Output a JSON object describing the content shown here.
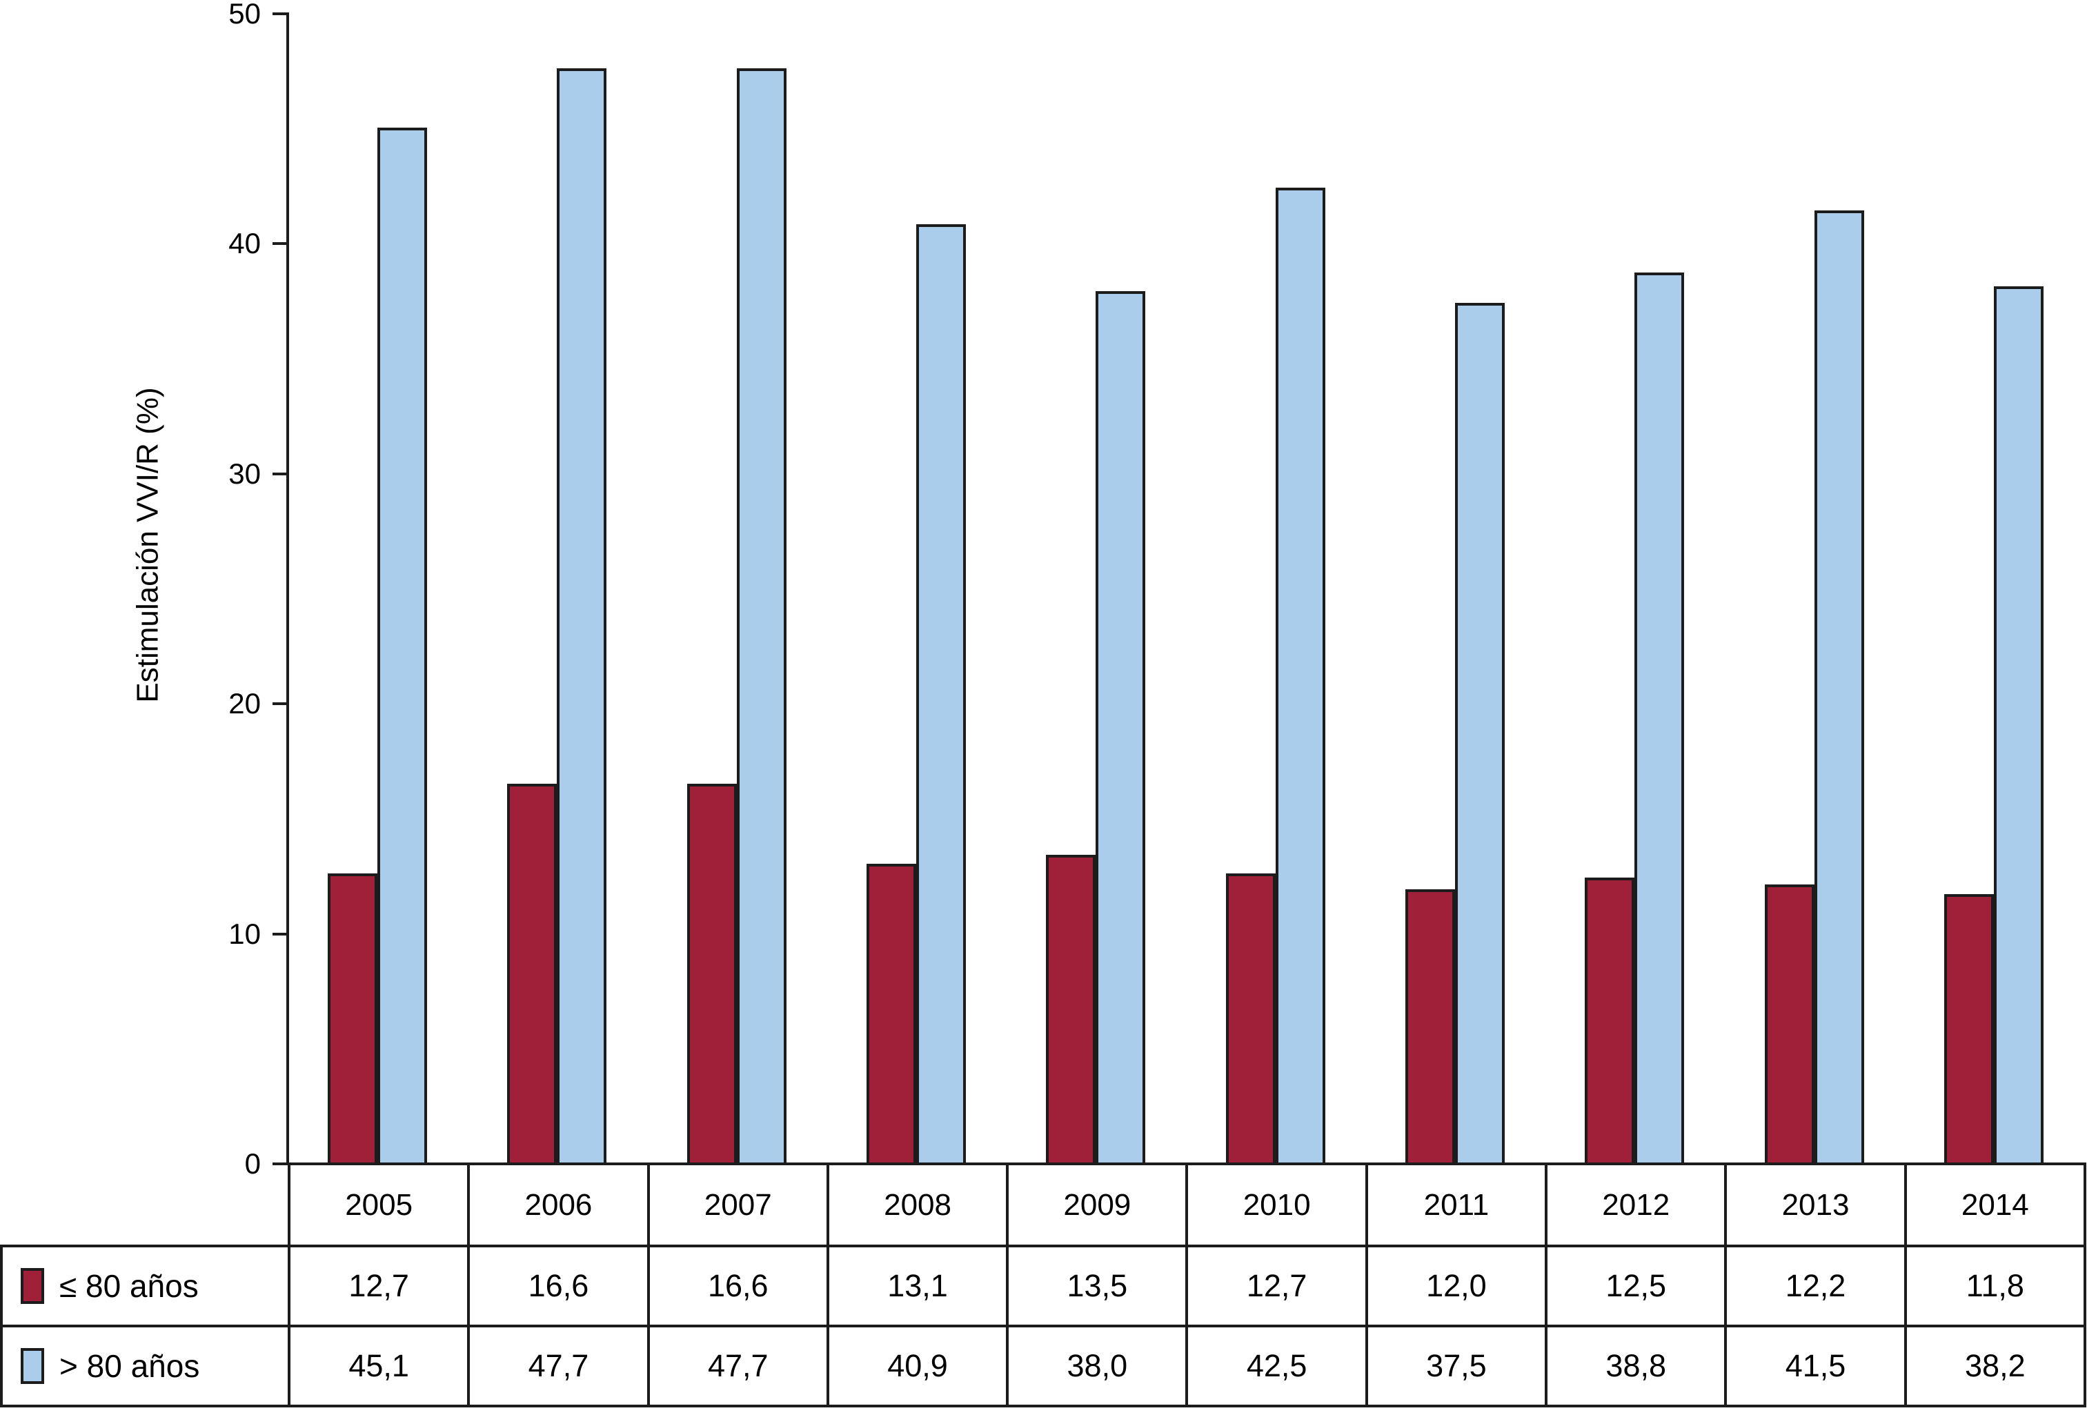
{
  "chart_data": {
    "type": "bar",
    "title": "",
    "xlabel": "",
    "ylabel": "Estimulación VVI/R (%)",
    "ylim": [
      0,
      50
    ],
    "yticks": [
      0,
      10,
      20,
      30,
      40,
      50
    ],
    "grid": false,
    "legend_position": "bottom-table-left",
    "categories": [
      "2005",
      "2006",
      "2007",
      "2008",
      "2009",
      "2010",
      "2011",
      "2012",
      "2013",
      "2014"
    ],
    "series": [
      {
        "name": "≤ 80 años",
        "color": "#9F2038",
        "values": [
          12.7,
          16.6,
          16.6,
          13.1,
          13.5,
          12.7,
          12.0,
          12.5,
          12.2,
          11.8
        ],
        "labels": [
          "12,7",
          "16,6",
          "16,6",
          "13,1",
          "13,5",
          "12,7",
          "12,0",
          "12,5",
          "12,2",
          "11,8"
        ]
      },
      {
        "name": "> 80 años",
        "color": "#A9CDEB",
        "values": [
          45.1,
          47.7,
          47.7,
          40.9,
          38.0,
          42.5,
          37.5,
          38.8,
          41.5,
          38.2
        ],
        "labels": [
          "45,1",
          "47,7",
          "47,7",
          "40,9",
          "38,0",
          "42,5",
          "37,5",
          "38,8",
          "41,5",
          "38,2"
        ]
      }
    ],
    "outline_color": "#1C1C1C"
  }
}
